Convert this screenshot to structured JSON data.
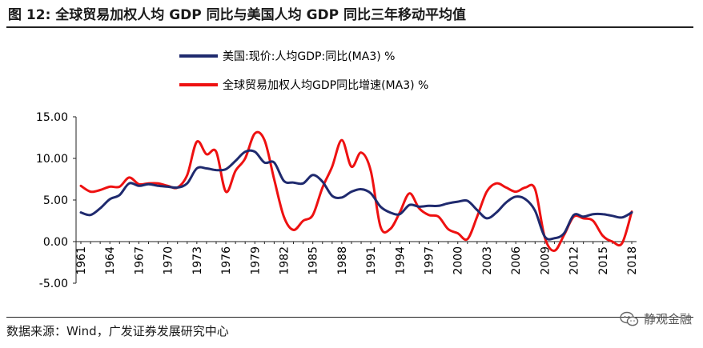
{
  "header": {
    "title": "图 12:  全球贸易加权人均 GDP 同比与美国人均 GDP 同比三年移动平均值"
  },
  "footer": {
    "source": "数据来源：Wind，广发证券发展研究中心",
    "watermark": "静观金融",
    "watermark_icon": "wechat-icon"
  },
  "chart_data": {
    "type": "line",
    "title": "图 12:  全球贸易加权人均 GDP 同比与美国人均 GDP 同比三年移动平均值",
    "xlabel": "",
    "ylabel": "",
    "ylim": [
      -5,
      15
    ],
    "yticks": [
      -5,
      0,
      5,
      10,
      15
    ],
    "ytick_labels": [
      "-5.00",
      "0.00",
      "5.00",
      "10.00",
      "15.00"
    ],
    "x_range": [
      1961,
      2018
    ],
    "xticks": [
      1961,
      1964,
      1967,
      1970,
      1973,
      1976,
      1979,
      1982,
      1985,
      1988,
      1991,
      1994,
      1997,
      2000,
      2003,
      2006,
      2009,
      2012,
      2015,
      2018
    ],
    "grid": false,
    "legend_position": "top",
    "series": [
      {
        "name": "美国:现价:人均GDP:同比(MA3) %",
        "color": "#1f2a6e",
        "x": [
          1961,
          1962,
          1963,
          1964,
          1965,
          1966,
          1967,
          1968,
          1969,
          1970,
          1971,
          1972,
          1973,
          1974,
          1975,
          1976,
          1977,
          1978,
          1979,
          1980,
          1981,
          1982,
          1983,
          1984,
          1985,
          1986,
          1987,
          1988,
          1989,
          1990,
          1991,
          1992,
          1993,
          1994,
          1995,
          1996,
          1997,
          1998,
          1999,
          2000,
          2001,
          2002,
          2003,
          2004,
          2005,
          2006,
          2007,
          2008,
          2009,
          2010,
          2011,
          2012,
          2013,
          2014,
          2015,
          2016,
          2017,
          2018
        ],
        "values": [
          3.5,
          3.2,
          4.0,
          5.1,
          5.6,
          7.0,
          6.7,
          6.9,
          6.7,
          6.6,
          6.5,
          7.0,
          8.8,
          8.8,
          8.6,
          8.7,
          9.7,
          10.8,
          10.8,
          9.5,
          9.5,
          7.3,
          7.1,
          7.0,
          8.0,
          7.2,
          5.5,
          5.3,
          6.0,
          6.3,
          5.8,
          4.2,
          3.5,
          3.3,
          4.4,
          4.2,
          4.3,
          4.3,
          4.6,
          4.8,
          4.9,
          3.8,
          2.8,
          3.5,
          4.7,
          5.4,
          5.1,
          3.7,
          0.6,
          0.4,
          1.0,
          3.2,
          3.0,
          3.3,
          3.3,
          3.1,
          2.9,
          3.5
        ]
      },
      {
        "name": "全球贸易加权人均GDP同比增速(MA3) %",
        "color": "#ee1111",
        "x": [
          1961,
          1962,
          1963,
          1964,
          1965,
          1966,
          1967,
          1968,
          1969,
          1970,
          1971,
          1972,
          1973,
          1974,
          1975,
          1976,
          1977,
          1978,
          1979,
          1980,
          1981,
          1982,
          1983,
          1984,
          1985,
          1986,
          1987,
          1988,
          1989,
          1990,
          1991,
          1992,
          1993,
          1994,
          1995,
          1996,
          1997,
          1998,
          1999,
          2000,
          2001,
          2002,
          2003,
          2004,
          2005,
          2006,
          2007,
          2008,
          2009,
          2010,
          2011,
          2012,
          2013,
          2014,
          2015,
          2016,
          2017,
          2018
        ],
        "values": [
          6.7,
          6.0,
          6.2,
          6.6,
          6.6,
          7.7,
          6.9,
          7.0,
          7.0,
          6.7,
          6.5,
          8.0,
          12.0,
          10.5,
          10.8,
          6.0,
          8.5,
          10.0,
          13.0,
          12.2,
          7.5,
          3.0,
          1.4,
          2.5,
          3.2,
          6.5,
          9.0,
          12.2,
          9.0,
          10.7,
          8.5,
          1.8,
          1.5,
          3.5,
          5.8,
          4.0,
          3.2,
          3.0,
          1.5,
          1.0,
          0.3,
          3.0,
          6.0,
          7.0,
          6.5,
          6.0,
          6.5,
          6.3,
          0.5,
          -1.1,
          0.8,
          3.0,
          2.8,
          2.5,
          0.7,
          0.0,
          -0.2,
          3.6
        ]
      }
    ]
  }
}
